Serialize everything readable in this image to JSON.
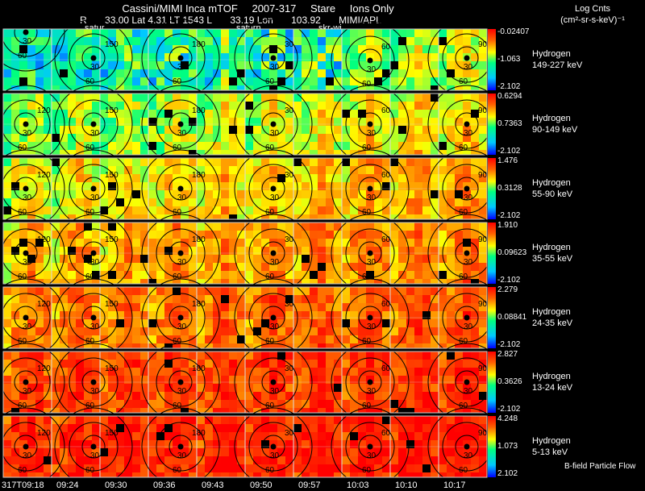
{
  "header": {
    "items": [
      "Cassini/MIMI Inca mTOF",
      "2007-317",
      "Stare",
      "Ions Only"
    ],
    "ephem": [
      "R",
      "33.00 Lat 4.31 LT 1543 L",
      "33.19 Lon",
      "103.92",
      "MIMI/APL"
    ]
  },
  "units": [
    "Log Cnts",
    "(cm²-sr-s-keV)⁻¹"
  ],
  "frame_tags": [
    "satur",
    "saturn",
    "skr-wi"
  ],
  "chart_data": {
    "type": "heatmap",
    "series_label": "Hydrogen",
    "time_labels": [
      "317T09:18",
      "09:24",
      "09:30",
      "09:36",
      "09:43",
      "09:50",
      "09:57",
      "10:03",
      "10:10",
      "10:17"
    ],
    "contour_labels": [
      "30",
      "60",
      "90",
      "120",
      "150",
      "180"
    ],
    "panels": [
      {
        "energy": "149-227 keV",
        "max": "-0.02407",
        "mid": "-1.063",
        "min": "-2.102",
        "level": 0.35
      },
      {
        "energy": "90-149 keV",
        "max": "0.6294",
        "mid": "0.7363",
        "min": "-2.102",
        "level": 0.45
      },
      {
        "energy": "55-90 keV",
        "max": "1.476",
        "mid": "0.3128",
        "min": "-2.102",
        "level": 0.55
      },
      {
        "energy": "35-55 keV",
        "max": "1.910",
        "mid": "0.09623",
        "min": "-2.102",
        "level": 0.63
      },
      {
        "energy": "24-35 keV",
        "max": "2.279",
        "mid": "0.08841",
        "min": "-2.102",
        "level": 0.71
      },
      {
        "energy": "13-24 keV",
        "max": "2.827",
        "mid": "0.3626",
        "min": "-2.102",
        "level": 0.8
      },
      {
        "energy": "5-13 keV",
        "max": "4.248",
        "mid": "1.073",
        "min": "2.102",
        "level": 0.85
      }
    ]
  },
  "footer": {
    "flow_label": "B-field Particle Flow"
  }
}
